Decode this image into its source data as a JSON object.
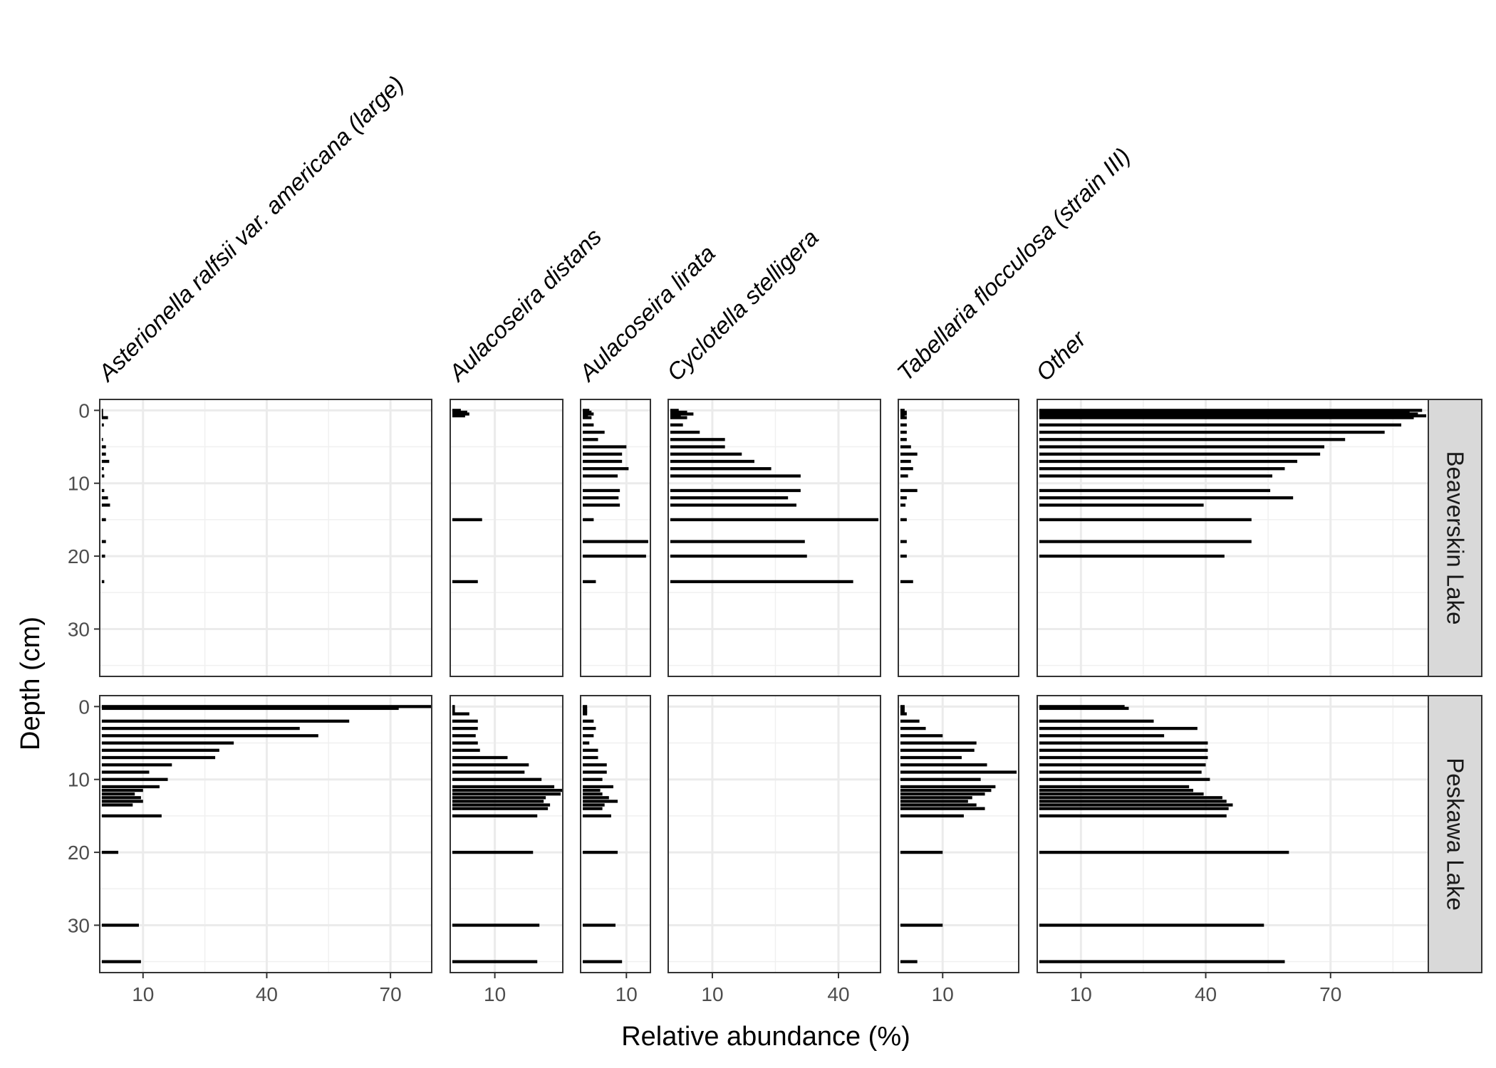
{
  "chart_data": {
    "type": "bar",
    "orientation": "horizontal",
    "xlabel": "Relative abundance (%)",
    "ylabel": "Depth (cm)",
    "y_ticks": [
      0,
      10,
      20,
      30
    ],
    "ylim": [
      -1.5,
      36.5
    ],
    "lakes": [
      "Beaverskin Lake",
      "Peskawa Lake"
    ],
    "taxa": [
      {
        "name": "Asterionella ralfsii var. americana (large)",
        "xlim": [
          -0.5,
          80
        ],
        "x_ticks": [
          10,
          40,
          70
        ]
      },
      {
        "name": "Aulacoseira distans",
        "xlim": [
          -0.5,
          26
        ],
        "x_ticks": [
          10
        ]
      },
      {
        "name": "Aulacoseira lirata",
        "xlim": [
          -0.5,
          15.5
        ],
        "x_ticks": [
          10
        ]
      },
      {
        "name": "Cyclotella stelligera",
        "xlim": [
          -0.5,
          50
        ],
        "x_ticks": [
          10,
          40
        ]
      },
      {
        "name": "Tabellaria flocculosa (strain III)",
        "xlim": [
          -0.5,
          28
        ],
        "x_ticks": [
          10
        ]
      },
      {
        "name": "Other",
        "xlim": [
          -0.5,
          93.5
        ],
        "x_ticks": [
          10,
          40,
          70
        ]
      }
    ],
    "depths": {
      "Beaverskin Lake": [
        0,
        0.25,
        0.5,
        0.75,
        1,
        2,
        3,
        4,
        5,
        6,
        7,
        8,
        9,
        11,
        12,
        13,
        15,
        18,
        20,
        23.5
      ],
      "Peskawa Lake": [
        0,
        0.25,
        0.5,
        0.75,
        1,
        2,
        3,
        4,
        5,
        6,
        7,
        8,
        9,
        10,
        11,
        11.5,
        12,
        12.5,
        13,
        13.5,
        14,
        15,
        20,
        30,
        35
      ]
    },
    "values": {
      "Beaverskin Lake": {
        "Asterionella ralfsii var. americana (large)": [
          0.3,
          0.3,
          0.3,
          0.3,
          1.5,
          0.5,
          0,
          0.3,
          1,
          1,
          1.8,
          0.5,
          0.6,
          0.6,
          1.5,
          2,
          1,
          1,
          0.8,
          0.6
        ],
        "Aulacoseira distans": [
          2,
          3.5,
          4,
          3,
          0,
          0,
          0,
          0,
          0,
          0,
          0,
          0,
          0,
          0,
          0,
          0,
          7,
          0,
          0,
          6
        ],
        "Aulacoseira lirata": [
          1.5,
          2,
          2.5,
          1.2,
          2,
          2.5,
          5,
          3.5,
          10,
          9,
          9,
          10.5,
          8,
          8.5,
          8.2,
          8.5,
          2.5,
          15,
          14.5,
          3
        ],
        "Cyclotella stelligera": [
          2,
          4,
          5.5,
          2.5,
          4,
          3,
          7,
          13,
          13,
          17,
          20,
          24,
          31,
          31,
          28,
          30,
          49.5,
          32,
          32.5,
          43.5
        ],
        "Tabellaria flocculosa (strain III)": [
          1,
          1.5,
          1.5,
          1,
          1.5,
          1.5,
          1.5,
          1.5,
          2.5,
          4,
          2.5,
          3,
          1.8,
          4,
          1.5,
          1.2,
          1.5,
          1.5,
          1.5,
          3
        ],
        "Other": [
          92,
          89,
          91,
          93,
          90,
          87,
          83,
          73.5,
          68.5,
          67.5,
          62,
          59,
          56,
          55.5,
          61,
          39.5,
          51,
          51,
          44.5,
          0
        ]
      },
      "Peskawa Lake": {
        "Asterionella ralfsii var. americana (large)": [
          80,
          72,
          0,
          0,
          0,
          60,
          48,
          52.5,
          32,
          28.5,
          27.5,
          17,
          11.5,
          16,
          14,
          10,
          8,
          9.5,
          10,
          7.5,
          0,
          14.5,
          4,
          9,
          9.5
        ],
        "Aulacoseira distans": [
          0.6,
          0.6,
          0.6,
          0.6,
          4,
          6,
          6,
          5.5,
          6,
          6.5,
          13,
          18,
          17,
          21,
          24,
          26,
          25.5,
          22,
          21.5,
          23,
          22.5,
          20,
          19,
          20.5,
          20
        ],
        "Aulacoseira lirata": [
          1,
          1,
          1,
          1,
          1,
          2.5,
          3,
          2.5,
          1.5,
          3.5,
          3.5,
          5.5,
          5.5,
          4.5,
          7,
          4,
          4.5,
          6,
          8,
          5,
          4.5,
          6.5,
          8,
          7.5,
          9
        ],
        "Cyclotella stelligera": [
          0,
          0,
          0,
          0,
          0,
          0,
          0,
          0,
          0,
          0,
          0,
          0,
          0,
          0,
          0,
          0,
          0,
          0,
          0,
          0,
          0,
          0,
          0,
          0,
          0
        ],
        "Tabellaria flocculosa (strain III)": [
          1,
          1,
          1,
          1,
          1.5,
          4.5,
          6,
          10,
          18,
          17.5,
          14.5,
          20.5,
          27.5,
          19,
          22.5,
          21.5,
          20,
          17,
          16,
          18,
          20,
          15,
          10,
          10,
          4
        ],
        "Other": [
          20.5,
          21.5,
          0,
          0,
          0,
          27.5,
          38,
          30,
          40.5,
          40.5,
          40.5,
          40,
          39,
          41,
          36,
          37,
          39.5,
          44,
          45,
          46.5,
          45.5,
          45,
          60,
          54,
          59
        ]
      }
    }
  }
}
